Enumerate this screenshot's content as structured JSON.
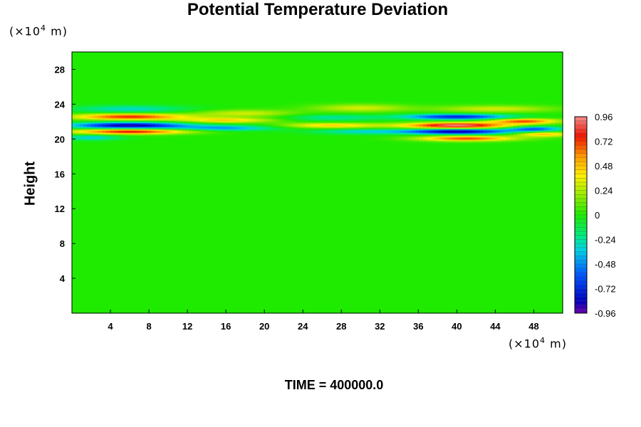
{
  "chart_data": {
    "type": "heatmap",
    "title": "Potential Temperature Deviation",
    "ylabel": "Height",
    "xlabel": "",
    "x_unit_label": {
      "prefix": "(×10",
      "exp": "4",
      "suffix": " m)"
    },
    "y_unit_label": {
      "prefix": "(×10",
      "exp": "4",
      "suffix": " m)"
    },
    "xlim": [
      0,
      51
    ],
    "ylim": [
      0,
      30
    ],
    "x_ticks": [
      4,
      8,
      12,
      16,
      20,
      24,
      28,
      32,
      36,
      40,
      44,
      48
    ],
    "y_ticks": [
      4,
      8,
      12,
      16,
      20,
      24,
      28
    ],
    "x_tick_labels": [
      "4",
      "8",
      "12",
      "16",
      "20",
      "24",
      "28",
      "32",
      "36",
      "40",
      "44",
      "48"
    ],
    "y_tick_labels": [
      "4",
      "8",
      "12",
      "16",
      "20",
      "24",
      "28"
    ],
    "colorbar": {
      "min": -0.96,
      "max": 0.96,
      "ticks": [
        0.96,
        0.72,
        0.48,
        0.24,
        0,
        -0.24,
        -0.48,
        -0.72,
        -0.96
      ],
      "tick_labels": [
        "0.96",
        "0.72",
        "0.48",
        "0.24",
        "0",
        "-0.24",
        "-0.48",
        "-0.72",
        "-0.96"
      ],
      "levels": 48
    },
    "background_value": 0,
    "features": [
      {
        "x": 6,
        "y": 22.6,
        "value": 0.75,
        "sx": 6,
        "sy": 0.35
      },
      {
        "x": 6,
        "y": 21.6,
        "value": -0.9,
        "sx": 6,
        "sy": 0.35
      },
      {
        "x": 6,
        "y": 20.9,
        "value": 0.8,
        "sx": 6,
        "sy": 0.3
      },
      {
        "x": 6,
        "y": 23.5,
        "value": -0.3,
        "sx": 6,
        "sy": 0.4
      },
      {
        "x": 2,
        "y": 20.2,
        "value": -0.35,
        "sx": 3,
        "sy": 0.3
      },
      {
        "x": 16,
        "y": 22.2,
        "value": 0.45,
        "sx": 5,
        "sy": 0.3
      },
      {
        "x": 16,
        "y": 21.3,
        "value": -0.45,
        "sx": 5,
        "sy": 0.3
      },
      {
        "x": 18,
        "y": 23.0,
        "value": 0.3,
        "sx": 5,
        "sy": 0.4
      },
      {
        "x": 27,
        "y": 21.6,
        "value": 0.45,
        "sx": 5,
        "sy": 0.3
      },
      {
        "x": 27,
        "y": 22.5,
        "value": -0.25,
        "sx": 5,
        "sy": 0.35
      },
      {
        "x": 30,
        "y": 23.6,
        "value": 0.3,
        "sx": 5,
        "sy": 0.45
      },
      {
        "x": 30,
        "y": 20.9,
        "value": -0.3,
        "sx": 5,
        "sy": 0.3
      },
      {
        "x": 40,
        "y": 21.6,
        "value": 0.96,
        "sx": 5.5,
        "sy": 0.33
      },
      {
        "x": 40,
        "y": 22.6,
        "value": -0.75,
        "sx": 5.5,
        "sy": 0.3
      },
      {
        "x": 40,
        "y": 20.9,
        "value": -0.9,
        "sx": 5.5,
        "sy": 0.3
      },
      {
        "x": 41,
        "y": 20.1,
        "value": 0.7,
        "sx": 5,
        "sy": 0.3
      },
      {
        "x": 44,
        "y": 23.5,
        "value": 0.3,
        "sx": 6,
        "sy": 0.4
      },
      {
        "x": 47,
        "y": 22.1,
        "value": 0.7,
        "sx": 3.5,
        "sy": 0.3
      },
      {
        "x": 48,
        "y": 21.2,
        "value": -0.6,
        "sx": 3,
        "sy": 0.3
      },
      {
        "x": 49,
        "y": 20.6,
        "value": 0.5,
        "sx": 3,
        "sy": 0.3
      }
    ]
  },
  "footer": {
    "time_label": "TIME = 400000.0"
  }
}
